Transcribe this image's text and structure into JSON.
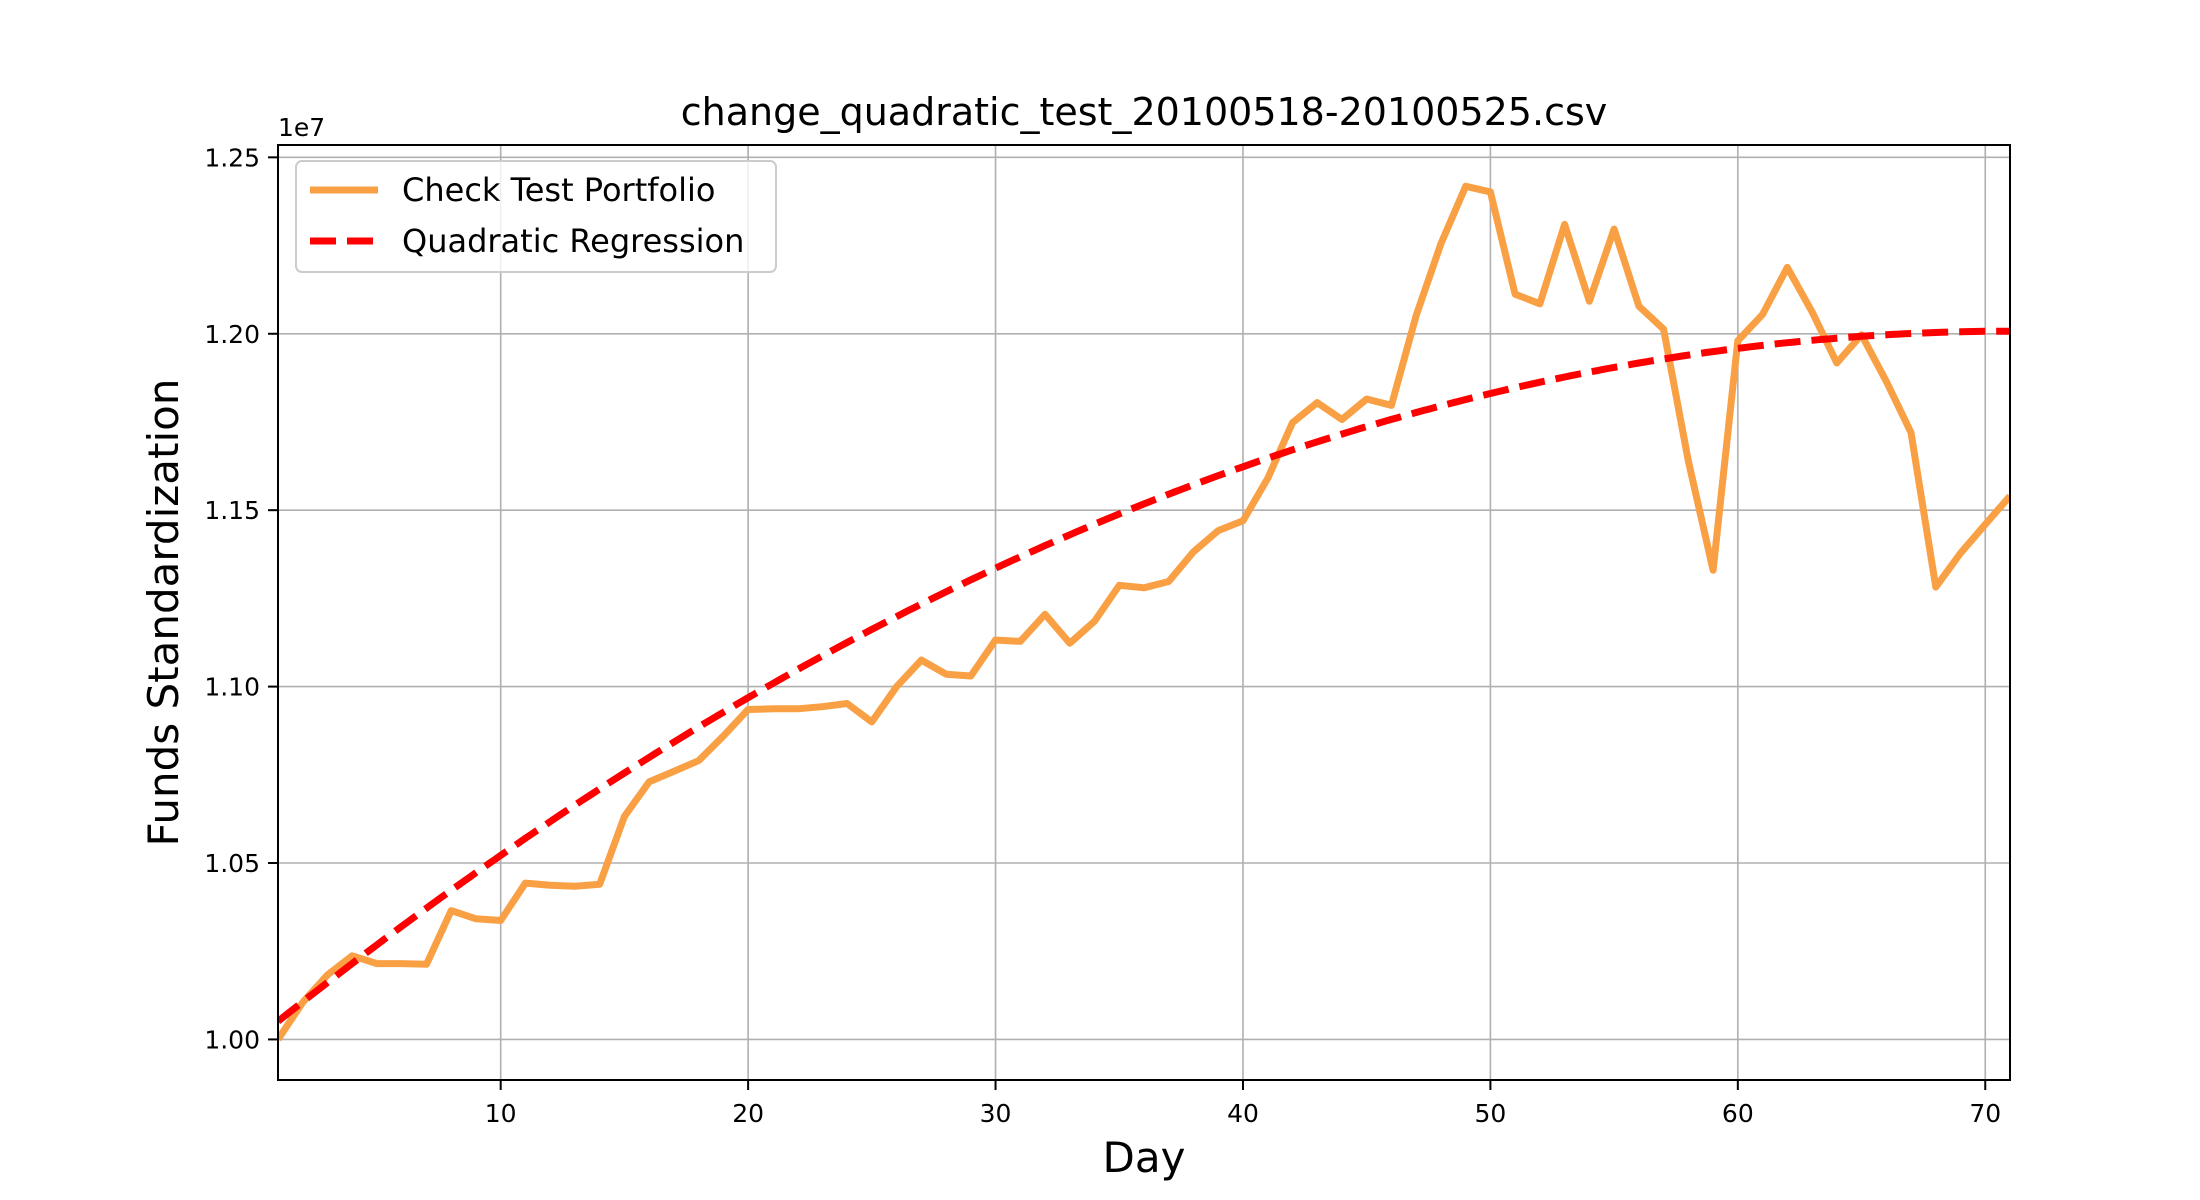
{
  "chart_data": {
    "type": "line",
    "title": "change_quadratic_test_20100518-20100525.csv",
    "xlabel": "Day",
    "ylabel": "Funds Standardization",
    "y_offset_label": "1e7",
    "xlim": [
      1,
      71
    ],
    "ylim": [
      0.9885,
      1.2535
    ],
    "y_scale_factor": 10000000,
    "grid": true,
    "legend_position": "top-left",
    "x_ticks": [
      10,
      20,
      30,
      40,
      50,
      60,
      70
    ],
    "y_ticks": [
      1.0,
      1.05,
      1.1,
      1.15,
      1.2,
      1.25
    ],
    "x_tick_labels": [
      "10",
      "20",
      "30",
      "40",
      "50",
      "60",
      "70"
    ],
    "y_tick_labels": [
      "1.00",
      "1.05",
      "1.10",
      "1.15",
      "1.20",
      "1.25"
    ],
    "colors": {
      "portfolio": "#f9a045",
      "regression": "#ff0000",
      "grid": "#b0b0b0",
      "axis": "#000000"
    },
    "legend": [
      {
        "label": "Check Test Portfolio",
        "style": "solid",
        "color": "#f9a045"
      },
      {
        "label": "Quadratic Regression",
        "style": "dashed",
        "color": "#ff0000"
      }
    ],
    "series": [
      {
        "name": "Check Test Portfolio",
        "style": "solid",
        "color": "#f9a045",
        "x": [
          1,
          2,
          3,
          4,
          5,
          6,
          7,
          8,
          9,
          10,
          11,
          12,
          13,
          14,
          15,
          16,
          17,
          18,
          19,
          20,
          21,
          22,
          23,
          24,
          25,
          26,
          27,
          28,
          29,
          30,
          31,
          32,
          33,
          34,
          35,
          36,
          37,
          38,
          39,
          40,
          41,
          42,
          43,
          44,
          45,
          46,
          47,
          48,
          49,
          50,
          51,
          52,
          53,
          54,
          55,
          56,
          57,
          58,
          59,
          60,
          61,
          62,
          63,
          64,
          65,
          66,
          67,
          68,
          69,
          70,
          71
        ],
        "y": [
          1.0,
          1.0105,
          1.0183,
          1.0237,
          1.0215,
          1.0215,
          1.0213,
          1.0365,
          1.0342,
          1.0337,
          1.0443,
          1.0437,
          1.0434,
          1.044,
          1.0632,
          1.073,
          1.076,
          1.079,
          1.086,
          1.0935,
          1.0937,
          1.0937,
          1.0943,
          1.0952,
          1.09,
          1.1,
          1.1075,
          1.1035,
          1.103,
          1.1132,
          1.1128,
          1.1205,
          1.1123,
          1.1185,
          1.1287,
          1.128,
          1.1298,
          1.1382,
          1.1442,
          1.147,
          1.159,
          1.1748,
          1.1805,
          1.1757,
          1.1815,
          1.1797,
          1.2052,
          1.2255,
          1.2418,
          1.2402,
          1.2112,
          1.2085,
          1.231,
          1.2092,
          1.2297,
          1.2078,
          1.2013,
          1.164,
          1.133,
          1.198,
          1.2055,
          1.2188,
          1.2062,
          1.1917,
          1.1997,
          1.1865,
          1.172,
          1.1282,
          1.1378,
          1.146,
          1.154
        ]
      },
      {
        "name": "Quadratic Regression",
        "style": "dashed",
        "color": "#ff0000",
        "model": "quadratic",
        "coefficients": {
          "a": -3.987e-05,
          "b": 0.005665,
          "c": 0.9995
        },
        "x_range": [
          1,
          71
        ]
      }
    ]
  }
}
